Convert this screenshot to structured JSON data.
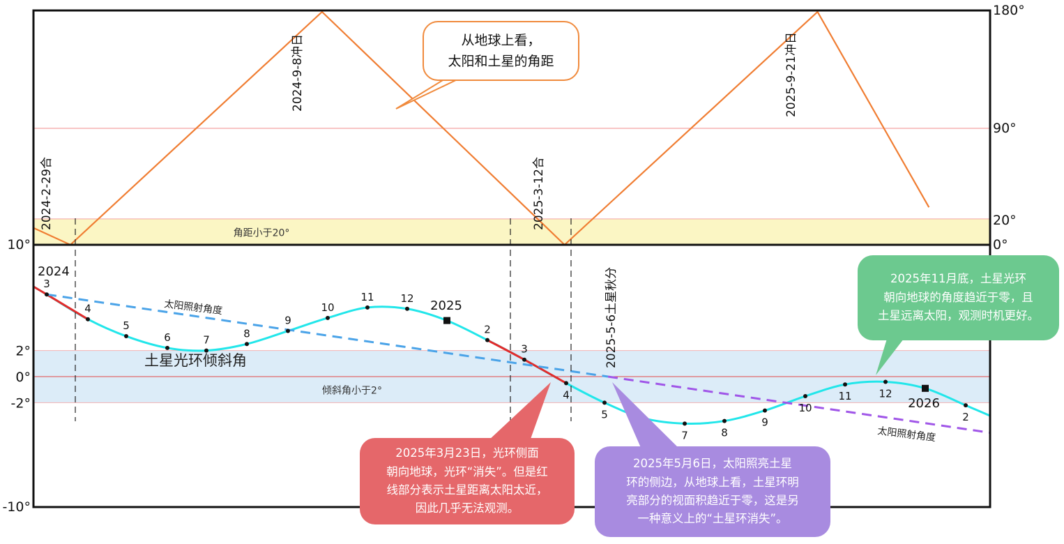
{
  "chart_data": [
    {
      "type": "line",
      "title": "",
      "ylabel": "",
      "ylim": [
        0,
        180
      ],
      "y_ticks": [
        "180°",
        "90°",
        "20°",
        "0°"
      ],
      "series": [
        {
          "name": "从地球上看，太阳和土星的角距",
          "color": "#f07d32",
          "x": [
            "2024-02-01",
            "2024-02-29",
            "2024-09-08",
            "2025-03-12",
            "2025-09-21",
            "2025-12-15"
          ],
          "values": [
            13,
            0,
            180,
            0,
            180,
            29
          ]
        }
      ],
      "band": {
        "label": "角距小于20°",
        "from": 0,
        "to": 20,
        "color": "#fbf6c4"
      },
      "events": [
        {
          "label": "2024-2-29合",
          "x": "2024-02-29"
        },
        {
          "label": "2024-9-8冲日",
          "x": "2024-09-08"
        },
        {
          "label": "2025-3-12合",
          "x": "2025-03-12"
        },
        {
          "label": "2025-9-21冲日",
          "x": "2025-09-21"
        }
      ],
      "callout": "从地球上看，\n太阳和土星的角距"
    },
    {
      "type": "line",
      "title": "",
      "ylim": [
        -10,
        10
      ],
      "y_ticks": [
        "10°",
        "2°",
        "0°",
        "-2°",
        "-10°"
      ],
      "year_labels": [
        "2024",
        "2025",
        "2026"
      ],
      "series": [
        {
          "name": "土星光环倾斜角",
          "color": "#22e6ea",
          "points": [
            {
              "label": "3",
              "value": 6.3
            },
            {
              "label": "4",
              "value": 4.4
            },
            {
              "label": "5",
              "value": 3.1
            },
            {
              "label": "6",
              "value": 2.2
            },
            {
              "label": "7",
              "value": 2.0
            },
            {
              "label": "8",
              "value": 2.5
            },
            {
              "label": "9",
              "value": 3.5
            },
            {
              "label": "10",
              "value": 4.5
            },
            {
              "label": "11",
              "value": 5.3
            },
            {
              "label": "12",
              "value": 5.2
            },
            {
              "label": "1",
              "value": 4.3
            },
            {
              "label": "2",
              "value": 2.8
            },
            {
              "label": "3",
              "value": 1.3
            },
            {
              "label": "4",
              "value": -0.5
            },
            {
              "label": "5",
              "value": -2.0
            },
            {
              "label": "6",
              "value": -3.2
            },
            {
              "label": "7",
              "value": -3.6
            },
            {
              "label": "8",
              "value": -3.4
            },
            {
              "label": "9",
              "value": -2.6
            },
            {
              "label": "10",
              "value": -1.5
            },
            {
              "label": "11",
              "value": -0.6
            },
            {
              "label": "12",
              "value": -0.4
            },
            {
              "label": "1",
              "value": -0.9
            },
            {
              "label": "2",
              "value": -2.2
            }
          ]
        },
        {
          "name": "太阳照射角度",
          "color": "#4aa3e8",
          "values": [
            6.3,
            0
          ]
        },
        {
          "name": "太阳照射角度",
          "color": "#a056e8",
          "values": [
            0,
            -4.3
          ]
        }
      ],
      "band": {
        "label": "倾斜角小于2°",
        "from": -2,
        "to": 2,
        "color": "#dcecf8"
      },
      "events": [
        {
          "label": "2025-5-6土星秋分"
        }
      ],
      "callouts": [
        "2025年11月底，土星光环\n朝向地球的角度趋近于零，且\n土星远离太阳，观测时机更好。",
        "2025年3月23日，光环侧面\n朝向地球，光环“消失”。但是红\n线部分表示土星距离太阳太近，\n因此几乎无法观测。",
        "2025年5月6日，太阳照亮土星\n环的侧边，从地球上看，土星环明\n亮部分的视面积趋近于零，这是另\n一种意义上的“土星环消失”。"
      ]
    }
  ]
}
